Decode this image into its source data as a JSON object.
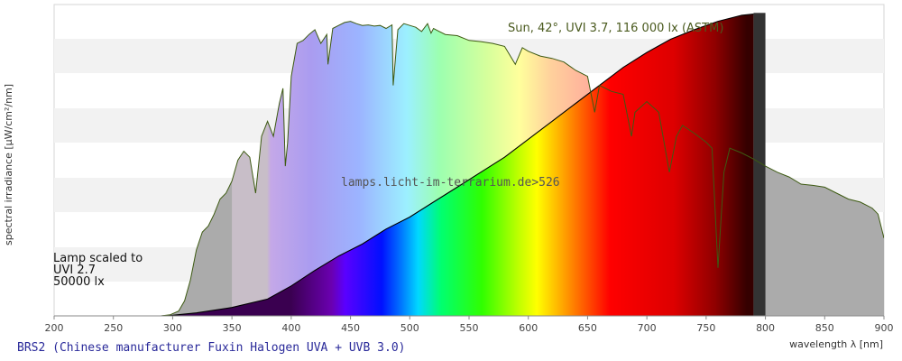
{
  "chart_data": {
    "type": "area",
    "xlabel": "wavelength λ [nm]",
    "ylabel": "spectral irradiance [µW/cm²/nm]",
    "xlim": [
      200,
      900
    ],
    "x_ticks": [
      200,
      250,
      300,
      350,
      400,
      450,
      500,
      550,
      600,
      650,
      700,
      750,
      800,
      850,
      900
    ],
    "grid": "horizontal bands",
    "caption": "BRS2 (Chinese manufacturer Fuxin Halogen UVA + UVB 3.0)",
    "watermark": "lamps.licht-im-terrarium.de>526",
    "annotations": [
      {
        "text": "Sun, 42°, UVI 3.7, 116 000 lx (ASTM)"
      },
      {
        "lines": [
          "Lamp scaled to",
          "UVI 2.7",
          "50000 lx"
        ]
      }
    ],
    "series": [
      {
        "kind": "sun",
        "x": [
          290,
          298,
          305,
          310,
          315,
          320,
          325,
          330,
          335,
          340,
          345,
          350,
          355,
          360,
          365,
          370,
          375,
          380,
          385,
          390,
          393,
          395,
          397,
          400,
          405,
          410,
          415,
          420,
          425,
          430,
          431,
          435,
          440,
          445,
          450,
          455,
          460,
          465,
          470,
          475,
          480,
          485,
          486,
          490,
          495,
          500,
          505,
          510,
          515,
          518,
          520,
          525,
          530,
          540,
          550,
          560,
          570,
          580,
          589,
          595,
          600,
          610,
          620,
          630,
          640,
          650,
          656,
          660,
          670,
          680,
          687,
          690,
          700,
          710,
          719,
          725,
          730,
          740,
          750,
          755,
          760,
          765,
          770,
          780,
          790,
          800,
          810,
          820,
          830,
          840,
          850,
          860,
          870,
          880,
          890,
          895,
          900
        ],
        "y": [
          0,
          2,
          8,
          25,
          60,
          110,
          140,
          150,
          170,
          195,
          205,
          225,
          260,
          275,
          265,
          205,
          300,
          325,
          300,
          355,
          380,
          250,
          290,
          400,
          455,
          460,
          470,
          478,
          455,
          470,
          420,
          480,
          485,
          490,
          492,
          488,
          485,
          486,
          484,
          485,
          480,
          486,
          385,
          478,
          488,
          485,
          482,
          475,
          488,
          472,
          480,
          475,
          470,
          468,
          460,
          458,
          455,
          450,
          420,
          448,
          442,
          434,
          430,
          424,
          410,
          400,
          340,
          385,
          375,
          370,
          300,
          340,
          358,
          340,
          240,
          300,
          318,
          305,
          290,
          280,
          80,
          240,
          280,
          272,
          262,
          250,
          240,
          232,
          220,
          218,
          215,
          205,
          195,
          190,
          180,
          170,
          130
        ]
      },
      {
        "kind": "lamp",
        "x": [
          290,
          300,
          320,
          350,
          380,
          400,
          420,
          440,
          460,
          480,
          500,
          520,
          540,
          560,
          580,
          600,
          620,
          640,
          660,
          680,
          700,
          720,
          740,
          760,
          780,
          790,
          800
        ],
        "y": [
          0,
          1,
          5,
          14,
          28,
          50,
          76,
          100,
          120,
          145,
          165,
          190,
          215,
          240,
          265,
          295,
          325,
          355,
          385,
          415,
          440,
          462,
          478,
          492,
          502,
          504,
          506
        ]
      }
    ]
  }
}
